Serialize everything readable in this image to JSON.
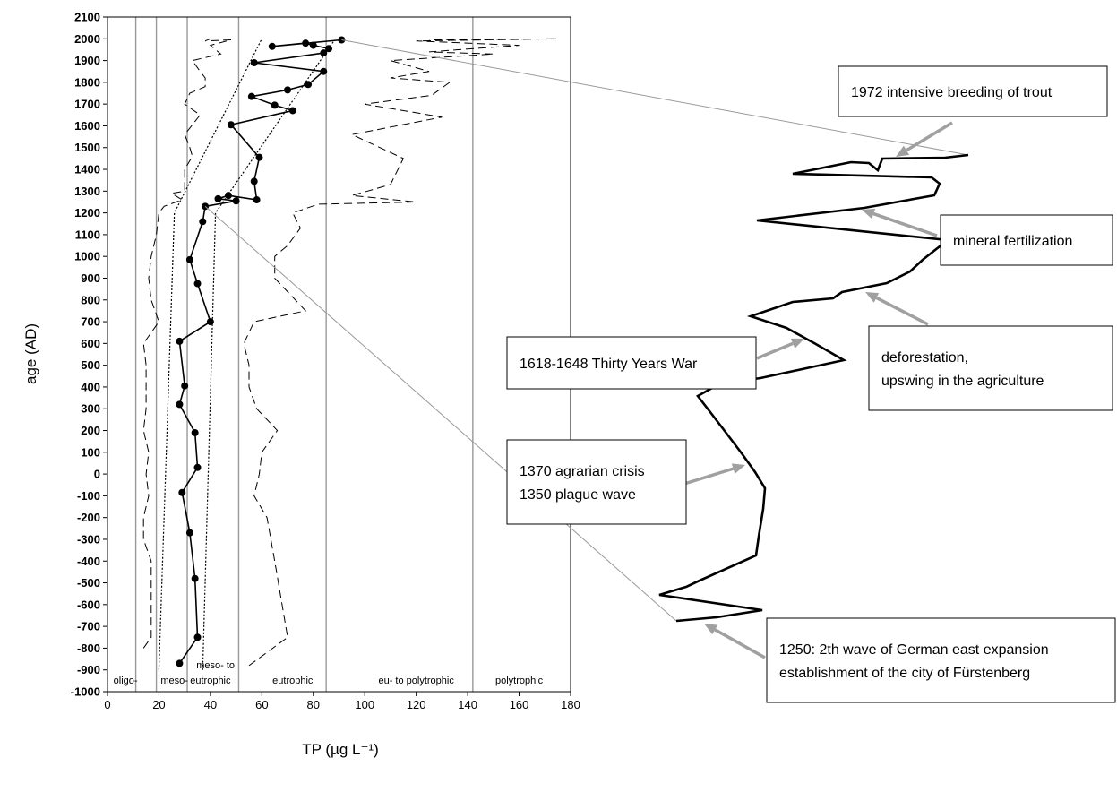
{
  "chart_data": {
    "type": "line",
    "title": "",
    "xlabel": "TP (µg L⁻¹)",
    "ylabel": "age (AD)",
    "xlim": [
      0,
      180
    ],
    "ylim": [
      -1000,
      2100
    ],
    "x_ticks": [
      "0",
      "20",
      "40",
      "60",
      "80",
      "100",
      "120",
      "140",
      "160",
      "180"
    ],
    "y_ticks": [
      "2100",
      "2000",
      "1900",
      "1800",
      "1700",
      "1600",
      "1500",
      "1400",
      "1300",
      "1200",
      "1100",
      "1000",
      "900",
      "800",
      "700",
      "600",
      "500",
      "400",
      "300",
      "200",
      "100",
      "0",
      "-100",
      "-200",
      "-300",
      "-400",
      "-500",
      "-600",
      "-700",
      "-800",
      "-900",
      "-1000"
    ],
    "grid": false,
    "trophic_boundaries": [
      11,
      19,
      31,
      51,
      85,
      142
    ],
    "trophic_zones": [
      {
        "label": "oligo-",
        "x": 7
      },
      {
        "label": "meso-",
        "x": 26
      },
      {
        "label": "meso- to",
        "x": 42,
        "row": 1
      },
      {
        "label": "eutrophic",
        "x": 40
      },
      {
        "label": "eutrophic",
        "x": 72
      },
      {
        "label": "eu- to polytrophic",
        "x": 120
      },
      {
        "label": "polytrophic",
        "x": 160
      }
    ],
    "series": [
      {
        "role": "TP reconstruction",
        "style": "solid-markers",
        "points": [
          [
            28,
            -870
          ],
          [
            35,
            -750
          ],
          [
            34,
            -480
          ],
          [
            32,
            -270
          ],
          [
            29,
            -85
          ],
          [
            35,
            30
          ],
          [
            34,
            190
          ],
          [
            28,
            320
          ],
          [
            30,
            405
          ],
          [
            28,
            610
          ],
          [
            40,
            700
          ],
          [
            35,
            875
          ],
          [
            32,
            985
          ],
          [
            37,
            1160
          ],
          [
            38,
            1230
          ],
          [
            50,
            1255
          ],
          [
            43,
            1265
          ],
          [
            47,
            1280
          ],
          [
            58,
            1260
          ],
          [
            57,
            1345
          ],
          [
            59,
            1455
          ],
          [
            48,
            1605
          ],
          [
            72,
            1670
          ],
          [
            65,
            1695
          ],
          [
            56,
            1735
          ],
          [
            70,
            1765
          ],
          [
            78,
            1790
          ],
          [
            84,
            1850
          ],
          [
            57,
            1890
          ],
          [
            84,
            1935
          ],
          [
            86,
            1955
          ],
          [
            80,
            1970
          ],
          [
            77,
            1980
          ],
          [
            64,
            1965
          ],
          [
            91,
            1995
          ]
        ]
      },
      {
        "role": "lower error bound",
        "style": "dashed",
        "points": [
          [
            14,
            -800
          ],
          [
            17,
            -750
          ],
          [
            17,
            -700
          ],
          [
            17,
            -400
          ],
          [
            14,
            -300
          ],
          [
            14,
            -200
          ],
          [
            16,
            -100
          ],
          [
            15,
            0
          ],
          [
            16,
            100
          ],
          [
            14,
            200
          ],
          [
            15,
            300
          ],
          [
            15,
            500
          ],
          [
            14,
            600
          ],
          [
            20,
            700
          ],
          [
            17,
            800
          ],
          [
            16,
            900
          ],
          [
            17,
            1000
          ],
          [
            19,
            1100
          ],
          [
            20,
            1200
          ],
          [
            22,
            1230
          ],
          [
            29,
            1260
          ],
          [
            25,
            1290
          ],
          [
            30,
            1300
          ],
          [
            30,
            1400
          ],
          [
            33,
            1460
          ],
          [
            32,
            1500
          ],
          [
            30,
            1560
          ],
          [
            36,
            1650
          ],
          [
            30,
            1700
          ],
          [
            32,
            1750
          ],
          [
            38,
            1780
          ],
          [
            38,
            1820
          ],
          [
            36,
            1850
          ],
          [
            33,
            1900
          ],
          [
            44,
            1930
          ],
          [
            40,
            1970
          ],
          [
            48,
            1995
          ],
          [
            38,
            1990
          ],
          [
            40,
            2000
          ]
        ]
      },
      {
        "role": "upper error bound",
        "style": "dashed",
        "points": [
          [
            55,
            -880
          ],
          [
            70,
            -750
          ],
          [
            65,
            -400
          ],
          [
            62,
            -200
          ],
          [
            57,
            -100
          ],
          [
            59,
            0
          ],
          [
            60,
            100
          ],
          [
            66,
            200
          ],
          [
            58,
            300
          ],
          [
            55,
            400
          ],
          [
            55,
            500
          ],
          [
            53,
            600
          ],
          [
            57,
            700
          ],
          [
            77,
            750
          ],
          [
            65,
            900
          ],
          [
            65,
            1000
          ],
          [
            70,
            1050
          ],
          [
            75,
            1130
          ],
          [
            72,
            1200
          ],
          [
            82,
            1240
          ],
          [
            120,
            1250
          ],
          [
            95,
            1280
          ],
          [
            110,
            1330
          ],
          [
            115,
            1450
          ],
          [
            95,
            1560
          ],
          [
            130,
            1640
          ],
          [
            100,
            1700
          ],
          [
            126,
            1740
          ],
          [
            133,
            1800
          ],
          [
            110,
            1820
          ],
          [
            125,
            1850
          ],
          [
            110,
            1900
          ],
          [
            150,
            1930
          ],
          [
            125,
            1940
          ],
          [
            160,
            1970
          ],
          [
            120,
            1990
          ],
          [
            175,
            2000
          ],
          [
            125,
            1995
          ]
        ]
      },
      {
        "role": "trend envelope",
        "style": "dotted",
        "points": [
          [
            20,
            -900
          ],
          [
            26,
            1200
          ],
          [
            60,
            2000
          ]
        ]
      },
      {
        "role": "trend envelope",
        "style": "dotted",
        "points": [
          [
            37,
            -900
          ],
          [
            42,
            1200
          ],
          [
            88,
            1990
          ]
        ]
      }
    ]
  },
  "detail_curve": {
    "style": "solid-thick",
    "points": [
      [
        1081,
        173
      ],
      [
        1055,
        176
      ],
      [
        985,
        177
      ],
      [
        980,
        190
      ],
      [
        970,
        182
      ],
      [
        950,
        181
      ],
      [
        885,
        194
      ],
      [
        1040,
        198
      ],
      [
        1049,
        205
      ],
      [
        1043,
        218
      ],
      [
        965,
        232
      ],
      [
        845,
        246
      ],
      [
        1058,
        268
      ],
      [
        1030,
        290
      ],
      [
        1016,
        303
      ],
      [
        990,
        316
      ],
      [
        940,
        326
      ],
      [
        930,
        333
      ],
      [
        885,
        337
      ],
      [
        838,
        353
      ],
      [
        878,
        366
      ],
      [
        909,
        383
      ],
      [
        942,
        402
      ],
      [
        849,
        422
      ],
      [
        804,
        428
      ],
      [
        779,
        442
      ],
      [
        796,
        464
      ],
      [
        809,
        481
      ],
      [
        828,
        506
      ],
      [
        843,
        527
      ],
      [
        854,
        545
      ],
      [
        852,
        568
      ],
      [
        847,
        599
      ],
      [
        844,
        620
      ],
      [
        781,
        648
      ],
      [
        766,
        655
      ],
      [
        736,
        664
      ],
      [
        851,
        681
      ],
      [
        800,
        689
      ],
      [
        755,
        693
      ]
    ]
  },
  "annotations": [
    {
      "lines": [
        "1972 intensive breeding of trout"
      ]
    },
    {
      "lines": [
        "mineral fertilization"
      ]
    },
    {
      "lines": [
        "deforestation,",
        "upswing in the agriculture"
      ]
    },
    {
      "lines": [
        "1618-1648 Thirty Years War"
      ]
    },
    {
      "lines": [
        "1370 agrarian crisis",
        "1350 plague wave"
      ]
    },
    {
      "lines": [
        "1250: 2th wave of German east expansion",
        "establishment of the city of Fürstenberg"
      ]
    }
  ],
  "colors": {
    "main_line": "#000000",
    "boundary_lines": "#999999",
    "connector_lines": "#9a9a9a",
    "arrows": "#a0a0a0",
    "frame": "#000000"
  }
}
